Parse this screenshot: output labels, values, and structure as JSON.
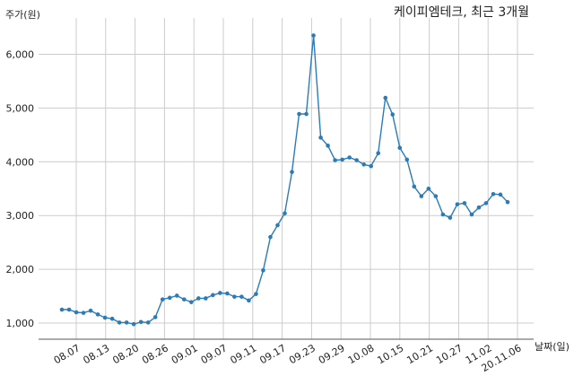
{
  "chart_data": {
    "type": "line",
    "title": "케이피엠테크, 최근 3개월",
    "ylabel": "주가(원)",
    "xlabel": "날짜(일)",
    "ylim": [
      700,
      6550
    ],
    "yticks": [
      1000,
      2000,
      3000,
      4000,
      5000,
      6000
    ],
    "ytick_labels": [
      "1,000",
      "2,000",
      "3,000",
      "4,000",
      "5,000",
      "6,000"
    ],
    "xtick_labels": [
      "08.07",
      "08.13",
      "08.20",
      "08.26",
      "09.01",
      "09.07",
      "09.11",
      "09.17",
      "09.23",
      "09.29",
      "10.08",
      "10.15",
      "10.21",
      "10.27",
      "11.02",
      "20.11.06"
    ],
    "grid": true,
    "line_color": "#2c7bb6",
    "values": [
      1250,
      1250,
      1200,
      1190,
      1230,
      1160,
      1100,
      1080,
      1010,
      1010,
      980,
      1020,
      1010,
      1110,
      1440,
      1470,
      1510,
      1440,
      1390,
      1460,
      1460,
      1520,
      1560,
      1550,
      1490,
      1490,
      1420,
      1540,
      1980,
      2600,
      2820,
      3040,
      3810,
      4890,
      4890,
      6350,
      4450,
      4300,
      4030,
      4040,
      4080,
      4030,
      3950,
      3920,
      4160,
      5190,
      4880,
      4260,
      4040,
      3540,
      3360,
      3500,
      3360,
      3020,
      2960,
      3210,
      3230,
      3020,
      3150,
      3230,
      3400,
      3390,
      3250
    ]
  }
}
